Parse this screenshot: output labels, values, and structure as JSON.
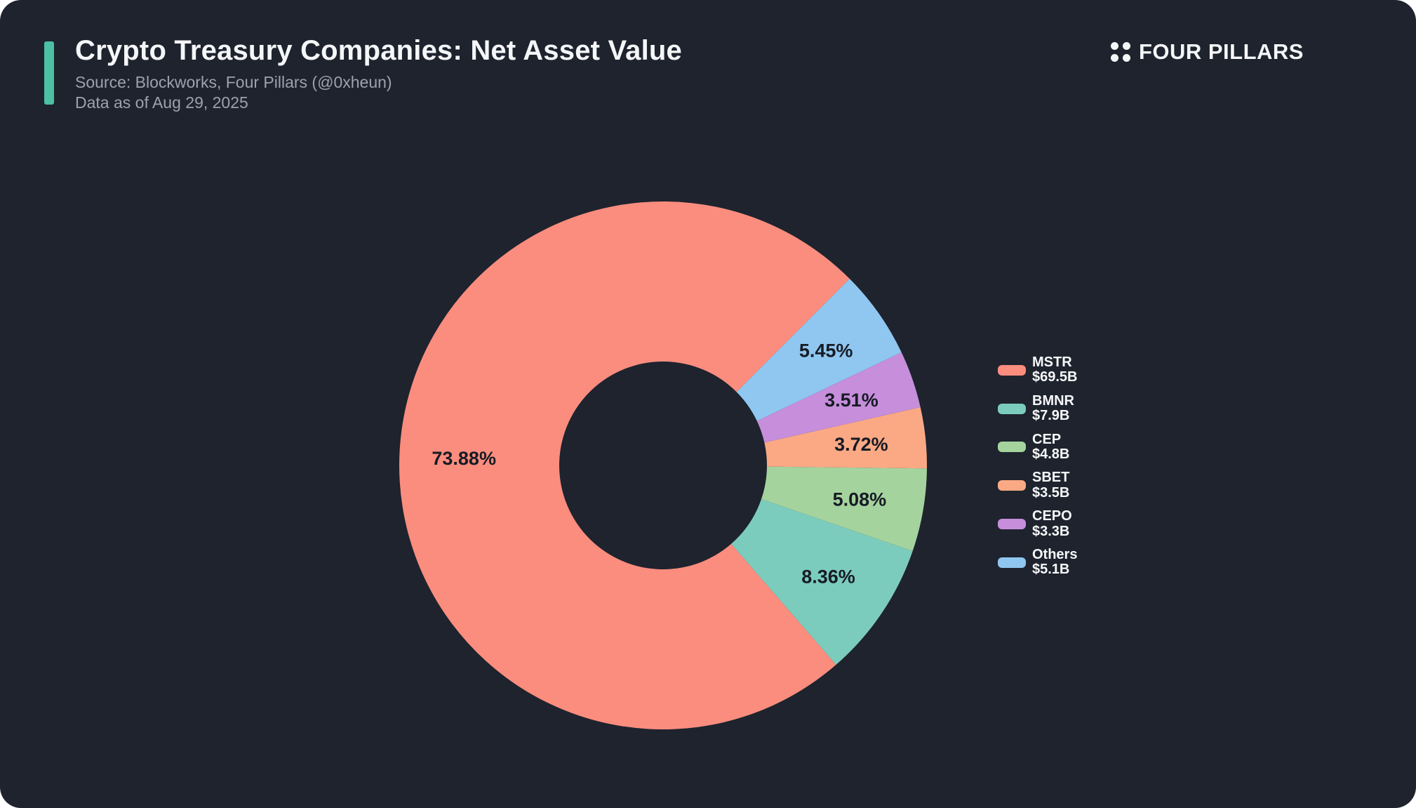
{
  "page": {
    "background_color": "#ffffff",
    "card_color": "#1E232E"
  },
  "header": {
    "title": "Crypto Treasury Companies: Net Asset Value",
    "source": "Source: Blockworks, Four Pillars (@0xheun)",
    "date": "Data as of Aug 29, 2025",
    "accent_color": "#4CC0A3",
    "logo_text": "FOUR PILLARS"
  },
  "chart_data": {
    "type": "pie",
    "title": "Crypto Treasury Companies: Net Asset Value",
    "donut": true,
    "inner_radius_ratio": 0.39,
    "start_angle_deg": 45,
    "direction": "counterclockwise",
    "legend_position": "right",
    "percent_label_color": "#161B25",
    "series": [
      {
        "label": "MSTR",
        "value_label": "$69.5B",
        "value_billions_usd": 69.5,
        "percent": 73.88,
        "percent_label": "73.88%",
        "color": "#FB8D7E"
      },
      {
        "label": "BMNR",
        "value_label": "$7.9B",
        "value_billions_usd": 7.9,
        "percent": 8.36,
        "percent_label": "8.36%",
        "color": "#7CCCBD"
      },
      {
        "label": "CEP",
        "value_label": "$4.8B",
        "value_billions_usd": 4.8,
        "percent": 5.08,
        "percent_label": "5.08%",
        "color": "#A5D39D"
      },
      {
        "label": "SBET",
        "value_label": "$3.5B",
        "value_billions_usd": 3.5,
        "percent": 3.72,
        "percent_label": "3.72%",
        "color": "#FBA985"
      },
      {
        "label": "CEPO",
        "value_label": "$3.3B",
        "value_billions_usd": 3.3,
        "percent": 3.51,
        "percent_label": "3.51%",
        "color": "#C68EDB"
      },
      {
        "label": "Others",
        "value_label": "$5.1B",
        "value_billions_usd": 5.1,
        "percent": 5.45,
        "percent_label": "5.45%",
        "color": "#90C7F0"
      }
    ]
  }
}
